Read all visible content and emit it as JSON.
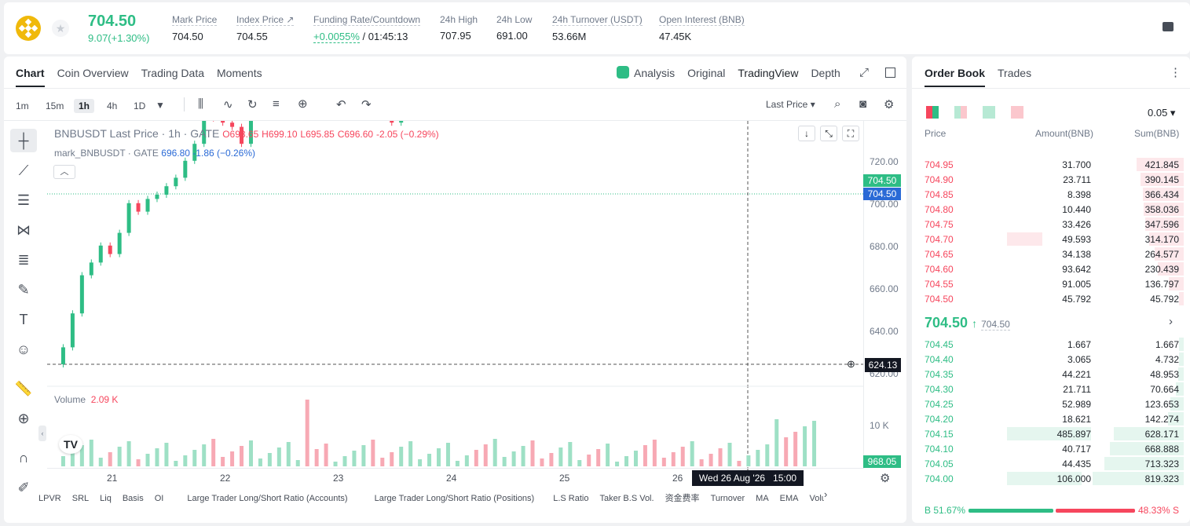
{
  "header": {
    "price": "704.50",
    "change": "9.07(+1.30%)",
    "stats": [
      {
        "label": "Mark Price",
        "value": "704.50"
      },
      {
        "label": "Index Price ↗",
        "value": "704.55"
      },
      {
        "label": "Funding Rate/Countdown",
        "value_green": "+0.0055%",
        "value": " / 01:45:13"
      },
      {
        "label": "24h High",
        "value": "707.95"
      },
      {
        "label": "24h Low",
        "value": "691.00"
      },
      {
        "label": "24h Turnover (USDT)",
        "value": "53.66M"
      },
      {
        "label": "Open Interest (BNB)",
        "value": "47.45K"
      }
    ]
  },
  "chart_tabs": [
    "Chart",
    "Coin Overview",
    "Trading Data",
    "Moments"
  ],
  "view_tabs": [
    "Analysis",
    "Original",
    "TradingView",
    "Depth"
  ],
  "timeframes": [
    "1m",
    "15m",
    "1h",
    "4h",
    "1D"
  ],
  "price_source": "Last Price",
  "legend": {
    "symbol": "BNBUSDT Last Price · 1h · GATE",
    "o": "O698.65",
    "h": "H699.10",
    "l": "L695.85",
    "c": "C696.60",
    "chg": "-2.05 (−0.29%)",
    "mark": "mark_BNBUSDT · GATE",
    "mark_v": "696.80",
    "mark_chg": "-1.86 (−0.26%)"
  },
  "volume": {
    "label": "Volume",
    "value": "2.09 K"
  },
  "price_axis": [
    "720.00",
    "700.00",
    "680.00",
    "660.00",
    "640.00",
    "620.00"
  ],
  "price_tags": {
    "last": "704.50",
    "mark": "704.50",
    "cross": "624.13",
    "vol": "968.05",
    "vol_tick": "10 K"
  },
  "x_axis": [
    "21",
    "22",
    "23",
    "24",
    "25",
    "26"
  ],
  "crosshair_time": "Wed 26 Aug '26   15:00",
  "indicators": [
    "LPVR",
    "SRL",
    "Liq",
    "Basis",
    "OI",
    "Large Trader Long/Short Ratio (Accounts)",
    "Large Trader Long/Short Ratio (Positions)",
    "L.S Ratio",
    "Taker B.S Vol.",
    "资金费率",
    "Turnover",
    "MA",
    "EMA",
    "Volu"
  ],
  "chart_data": {
    "type": "candlestick",
    "symbol": "BNBUSDT",
    "interval": "1h",
    "y_range": [
      620,
      725
    ],
    "last_price": 704.5,
    "mark_price": 704.5
  },
  "orderbook": {
    "tabs": [
      "Order Book",
      "Trades"
    ],
    "precision": "0.05",
    "cols": [
      "Price",
      "Amount(BNB)",
      "Sum(BNB)"
    ],
    "asks": [
      [
        "704.95",
        "31.700",
        "421.845"
      ],
      [
        "704.90",
        "23.711",
        "390.145"
      ],
      [
        "704.85",
        "8.398",
        "366.434"
      ],
      [
        "704.80",
        "10.440",
        "358.036"
      ],
      [
        "704.75",
        "33.426",
        "347.596"
      ],
      [
        "704.70",
        "49.593",
        "314.170"
      ],
      [
        "704.65",
        "34.138",
        "264.577"
      ],
      [
        "704.60",
        "93.642",
        "230.439"
      ],
      [
        "704.55",
        "91.005",
        "136.797"
      ],
      [
        "704.50",
        "45.792",
        "45.792"
      ]
    ],
    "mid": "704.50",
    "mid_mark": "704.50",
    "bids": [
      [
        "704.45",
        "1.667",
        "1.667"
      ],
      [
        "704.40",
        "3.065",
        "4.732"
      ],
      [
        "704.35",
        "44.221",
        "48.953"
      ],
      [
        "704.30",
        "21.711",
        "70.664"
      ],
      [
        "704.25",
        "52.989",
        "123.653"
      ],
      [
        "704.20",
        "18.621",
        "142.274"
      ],
      [
        "704.15",
        "485.897",
        "628.171"
      ],
      [
        "704.10",
        "40.717",
        "668.888"
      ],
      [
        "704.05",
        "44.435",
        "713.323"
      ],
      [
        "704.00",
        "106.000",
        "819.323"
      ]
    ],
    "buy": "B 51.67%",
    "sell": "48.33% S"
  },
  "colors": {
    "up": "#2ebd85",
    "down": "#f6465d",
    "brand": "#f0b90b"
  }
}
